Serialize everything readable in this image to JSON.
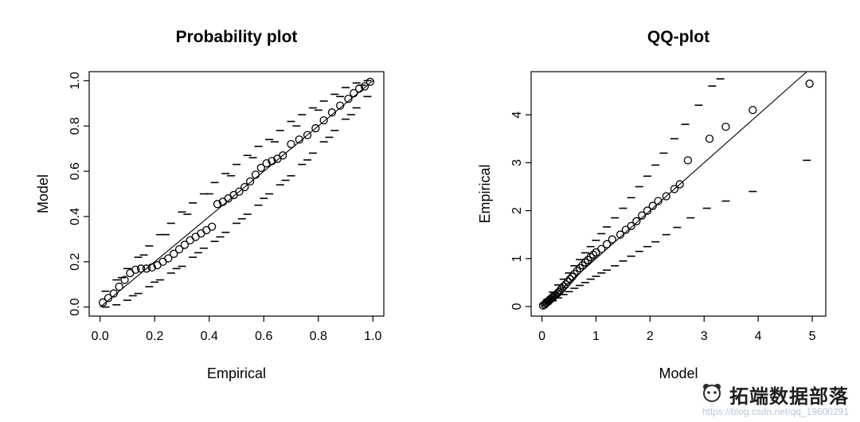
{
  "page": {
    "background": "#ffffff",
    "axis_color": "#000000"
  },
  "watermark": {
    "brand": "拓端数据部落",
    "url": "https://blog.csdn.net/qq_19600291",
    "brand_color": "#1f1f1f",
    "url_color": "#b9c6da",
    "logo": "panda-face-logo"
  },
  "chart_data": [
    {
      "type": "scatter",
      "title": "Probability plot",
      "xlabel": "Empirical",
      "ylabel": "Model",
      "xlim": [
        -0.04,
        1.04
      ],
      "ylim": [
        -0.04,
        1.04
      ],
      "grid": false,
      "legend": null,
      "xticks": [
        0,
        0.2,
        0.4,
        0.6,
        0.8,
        1.0
      ],
      "xtick_labels": [
        "0.0",
        "0.2",
        "0.4",
        "0.6",
        "0.8",
        "1.0"
      ],
      "yticks": [
        0,
        0.2,
        0.4,
        0.6,
        0.8,
        1.0
      ],
      "ytick_labels": [
        "0.0",
        "0.2",
        "0.4",
        "0.6",
        "0.8",
        "1.0"
      ],
      "reference_line": [
        [
          0,
          0
        ],
        [
          1,
          1
        ]
      ],
      "points": [
        [
          0.01,
          0.02
        ],
        [
          0.03,
          0.04
        ],
        [
          0.05,
          0.06
        ],
        [
          0.07,
          0.09
        ],
        [
          0.09,
          0.12
        ],
        [
          0.11,
          0.15
        ],
        [
          0.13,
          0.165
        ],
        [
          0.15,
          0.17
        ],
        [
          0.17,
          0.17
        ],
        [
          0.19,
          0.175
        ],
        [
          0.21,
          0.185
        ],
        [
          0.23,
          0.2
        ],
        [
          0.25,
          0.215
        ],
        [
          0.27,
          0.235
        ],
        [
          0.29,
          0.255
        ],
        [
          0.31,
          0.275
        ],
        [
          0.33,
          0.295
        ],
        [
          0.35,
          0.31
        ],
        [
          0.37,
          0.325
        ],
        [
          0.39,
          0.34
        ],
        [
          0.41,
          0.355
        ],
        [
          0.43,
          0.455
        ],
        [
          0.45,
          0.465
        ],
        [
          0.47,
          0.48
        ],
        [
          0.49,
          0.495
        ],
        [
          0.51,
          0.51
        ],
        [
          0.53,
          0.53
        ],
        [
          0.55,
          0.555
        ],
        [
          0.57,
          0.585
        ],
        [
          0.59,
          0.615
        ],
        [
          0.61,
          0.635
        ],
        [
          0.63,
          0.645
        ],
        [
          0.65,
          0.655
        ],
        [
          0.67,
          0.67
        ],
        [
          0.7,
          0.72
        ],
        [
          0.73,
          0.74
        ],
        [
          0.76,
          0.76
        ],
        [
          0.79,
          0.79
        ],
        [
          0.82,
          0.825
        ],
        [
          0.85,
          0.86
        ],
        [
          0.88,
          0.89
        ],
        [
          0.91,
          0.92
        ],
        [
          0.93,
          0.945
        ],
        [
          0.95,
          0.965
        ],
        [
          0.97,
          0.975
        ],
        [
          0.99,
          0.995
        ]
      ],
      "ci_upper_dashes": [
        [
          0.02,
          0.07
        ],
        [
          0.06,
          0.12
        ],
        [
          0.1,
          0.17
        ],
        [
          0.14,
          0.22
        ],
        [
          0.18,
          0.27
        ],
        [
          0.22,
          0.32
        ],
        [
          0.26,
          0.37
        ],
        [
          0.3,
          0.42
        ],
        [
          0.34,
          0.46
        ],
        [
          0.38,
          0.5
        ],
        [
          0.42,
          0.55
        ],
        [
          0.46,
          0.59
        ],
        [
          0.5,
          0.63
        ],
        [
          0.54,
          0.67
        ],
        [
          0.58,
          0.71
        ],
        [
          0.62,
          0.74
        ],
        [
          0.66,
          0.78
        ],
        [
          0.7,
          0.82
        ],
        [
          0.74,
          0.85
        ],
        [
          0.78,
          0.88
        ],
        [
          0.82,
          0.91
        ],
        [
          0.86,
          0.94
        ],
        [
          0.9,
          0.97
        ],
        [
          0.94,
          0.99
        ],
        [
          0.98,
          1.0
        ],
        [
          0.08,
          0.13
        ],
        [
          0.16,
          0.23
        ],
        [
          0.24,
          0.32
        ],
        [
          0.32,
          0.41
        ],
        [
          0.4,
          0.5
        ],
        [
          0.48,
          0.58
        ],
        [
          0.56,
          0.66
        ],
        [
          0.64,
          0.73
        ],
        [
          0.72,
          0.8
        ],
        [
          0.8,
          0.87
        ],
        [
          0.88,
          0.93
        ],
        [
          0.96,
          0.98
        ]
      ],
      "ci_lower_dashes": [
        [
          0.02,
          0.0
        ],
        [
          0.06,
          0.01
        ],
        [
          0.1,
          0.03
        ],
        [
          0.14,
          0.06
        ],
        [
          0.18,
          0.09
        ],
        [
          0.22,
          0.12
        ],
        [
          0.26,
          0.15
        ],
        [
          0.3,
          0.18
        ],
        [
          0.34,
          0.22
        ],
        [
          0.38,
          0.26
        ],
        [
          0.42,
          0.29
        ],
        [
          0.46,
          0.33
        ],
        [
          0.5,
          0.37
        ],
        [
          0.54,
          0.41
        ],
        [
          0.58,
          0.45
        ],
        [
          0.62,
          0.5
        ],
        [
          0.66,
          0.54
        ],
        [
          0.7,
          0.58
        ],
        [
          0.74,
          0.63
        ],
        [
          0.78,
          0.68
        ],
        [
          0.82,
          0.73
        ],
        [
          0.86,
          0.78
        ],
        [
          0.9,
          0.83
        ],
        [
          0.94,
          0.88
        ],
        [
          0.98,
          0.93
        ],
        [
          0.12,
          0.05
        ],
        [
          0.2,
          0.11
        ],
        [
          0.28,
          0.17
        ],
        [
          0.36,
          0.24
        ],
        [
          0.44,
          0.31
        ],
        [
          0.52,
          0.39
        ],
        [
          0.6,
          0.48
        ],
        [
          0.68,
          0.56
        ],
        [
          0.76,
          0.65
        ],
        [
          0.84,
          0.75
        ],
        [
          0.92,
          0.85
        ]
      ]
    },
    {
      "type": "scatter",
      "title": "QQ-plot",
      "xlabel": "Model",
      "ylabel": "Empirical",
      "xlim": [
        -0.2,
        5.25
      ],
      "ylim": [
        -0.2,
        4.9
      ],
      "grid": false,
      "legend": null,
      "xticks": [
        0,
        1,
        2,
        3,
        4,
        5
      ],
      "xtick_labels": [
        "0",
        "1",
        "2",
        "3",
        "4",
        "5"
      ],
      "yticks": [
        0,
        1,
        2,
        3,
        4
      ],
      "ytick_labels": [
        "0",
        "1",
        "2",
        "3",
        "4"
      ],
      "reference_line": [
        [
          0,
          0
        ],
        [
          4.9,
          4.9
        ]
      ],
      "points": [
        [
          0.02,
          0.02
        ],
        [
          0.05,
          0.04
        ],
        [
          0.07,
          0.07
        ],
        [
          0.09,
          0.08
        ],
        [
          0.11,
          0.11
        ],
        [
          0.13,
          0.12
        ],
        [
          0.15,
          0.15
        ],
        [
          0.17,
          0.16
        ],
        [
          0.19,
          0.19
        ],
        [
          0.21,
          0.2
        ],
        [
          0.23,
          0.23
        ],
        [
          0.25,
          0.24
        ],
        [
          0.28,
          0.27
        ],
        [
          0.31,
          0.3
        ],
        [
          0.34,
          0.34
        ],
        [
          0.37,
          0.38
        ],
        [
          0.4,
          0.42
        ],
        [
          0.44,
          0.46
        ],
        [
          0.48,
          0.52
        ],
        [
          0.52,
          0.57
        ],
        [
          0.56,
          0.62
        ],
        [
          0.6,
          0.68
        ],
        [
          0.65,
          0.74
        ],
        [
          0.7,
          0.8
        ],
        [
          0.75,
          0.86
        ],
        [
          0.8,
          0.92
        ],
        [
          0.85,
          0.97
        ],
        [
          0.9,
          1.03
        ],
        [
          0.95,
          1.08
        ],
        [
          1.0,
          1.13
        ],
        [
          1.1,
          1.2
        ],
        [
          1.2,
          1.3
        ],
        [
          1.3,
          1.4
        ],
        [
          1.45,
          1.5
        ],
        [
          1.55,
          1.6
        ],
        [
          1.65,
          1.68
        ],
        [
          1.75,
          1.78
        ],
        [
          1.85,
          1.9
        ],
        [
          1.95,
          2.0
        ],
        [
          2.05,
          2.1
        ],
        [
          2.15,
          2.2
        ],
        [
          2.3,
          2.3
        ],
        [
          2.45,
          2.45
        ],
        [
          2.55,
          2.55
        ],
        [
          2.7,
          3.05
        ],
        [
          3.1,
          3.5
        ],
        [
          3.4,
          3.75
        ],
        [
          3.9,
          4.1
        ],
        [
          4.95,
          4.65
        ]
      ],
      "ci_upper_dashes": [
        [
          0.1,
          0.15
        ],
        [
          0.2,
          0.3
        ],
        [
          0.3,
          0.45
        ],
        [
          0.4,
          0.57
        ],
        [
          0.5,
          0.7
        ],
        [
          0.6,
          0.85
        ],
        [
          0.7,
          0.98
        ],
        [
          0.8,
          1.12
        ],
        [
          0.9,
          1.25
        ],
        [
          1.0,
          1.38
        ],
        [
          1.1,
          1.52
        ],
        [
          1.2,
          1.66
        ],
        [
          1.35,
          1.85
        ],
        [
          1.5,
          2.05
        ],
        [
          1.65,
          2.27
        ],
        [
          1.8,
          2.5
        ],
        [
          1.95,
          2.72
        ],
        [
          2.1,
          2.95
        ],
        [
          2.25,
          3.2
        ],
        [
          2.45,
          3.5
        ],
        [
          2.65,
          3.8
        ],
        [
          2.9,
          4.2
        ],
        [
          3.15,
          4.6
        ],
        [
          3.3,
          4.75
        ]
      ],
      "ci_lower_dashes": [
        [
          0.1,
          0.05
        ],
        [
          0.2,
          0.12
        ],
        [
          0.3,
          0.18
        ],
        [
          0.4,
          0.25
        ],
        [
          0.5,
          0.31
        ],
        [
          0.6,
          0.38
        ],
        [
          0.7,
          0.44
        ],
        [
          0.8,
          0.5
        ],
        [
          0.9,
          0.57
        ],
        [
          1.0,
          0.63
        ],
        [
          1.1,
          0.7
        ],
        [
          1.2,
          0.76
        ],
        [
          1.35,
          0.85
        ],
        [
          1.5,
          0.95
        ],
        [
          1.65,
          1.05
        ],
        [
          1.8,
          1.15
        ],
        [
          1.95,
          1.25
        ],
        [
          2.1,
          1.35
        ],
        [
          2.3,
          1.5
        ],
        [
          2.5,
          1.65
        ],
        [
          2.75,
          1.85
        ],
        [
          3.05,
          2.05
        ],
        [
          3.4,
          2.2
        ],
        [
          3.9,
          2.4
        ],
        [
          4.9,
          3.05
        ]
      ]
    }
  ]
}
